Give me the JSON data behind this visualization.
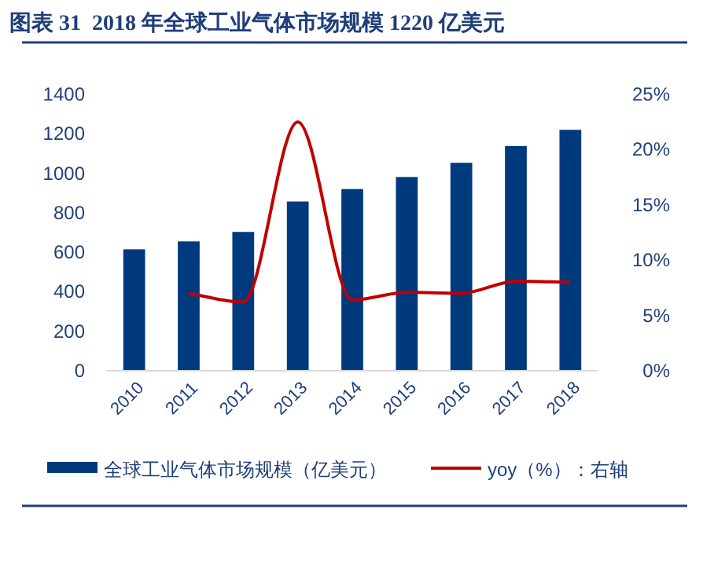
{
  "chart_data": {
    "type": "bar",
    "title": "图表 31  2018 年全球工业气体市场规模 1220 亿美元",
    "categories": [
      "2010",
      "2011",
      "2012",
      "2013",
      "2014",
      "2015",
      "2016",
      "2017",
      "2018"
    ],
    "series": [
      {
        "name": "全球工业气体市场规模（亿美元）",
        "color": "#003a7d",
        "values": [
          615,
          655,
          703,
          857,
          920,
          981,
          1053,
          1138,
          1220
        ]
      },
      {
        "name": "yoy（%）：右轴",
        "type": "line",
        "axis": "y2",
        "color": "#c00000",
        "values": [
          null,
          7.0,
          6.2,
          22.5,
          6.4,
          7.1,
          7.0,
          8.1,
          8.0
        ]
      }
    ],
    "ylim": [
      0,
      1400
    ],
    "yticks": [
      0,
      200,
      400,
      600,
      800,
      1000,
      1200,
      1400
    ],
    "y2lim": [
      0,
      25
    ],
    "y2ticks": [
      {
        "value": 0,
        "label": "0%"
      },
      {
        "value": 5,
        "label": "5%"
      },
      {
        "value": 10,
        "label": "10%"
      },
      {
        "value": 15,
        "label": "15%"
      },
      {
        "value": 20,
        "label": "20%"
      },
      {
        "value": 25,
        "label": "25%"
      }
    ],
    "legend": "bottom",
    "grid": false
  }
}
